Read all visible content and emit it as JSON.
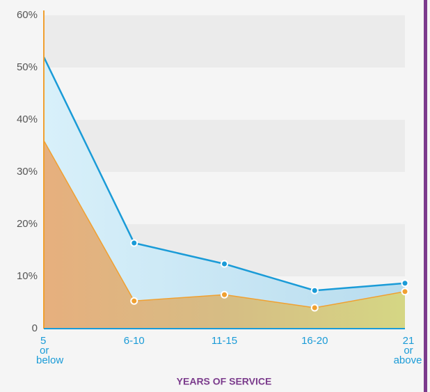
{
  "chart_data": {
    "type": "area",
    "x_label": "YEARS OF SERVICE",
    "categories": [
      "5 or below",
      "6-10",
      "11-15",
      "16-20",
      "21 or above"
    ],
    "series": [
      {
        "color": "#1a9bd7",
        "values": [
          52,
          16.4,
          12.4,
          7.3,
          8.7
        ]
      },
      {
        "color": "#f0a030",
        "values": [
          36,
          5.3,
          6.5,
          4,
          7.1
        ]
      }
    ],
    "ylim": [
      0,
      60
    ],
    "yticks": [
      0,
      {
        "value": 10,
        "label": "10%"
      },
      {
        "value": 20,
        "label": "20%"
      },
      {
        "value": 30,
        "label": "30%"
      },
      {
        "value": 40,
        "label": "40%"
      },
      {
        "value": 50,
        "label": "50%"
      },
      {
        "value": 60,
        "label": "60%"
      }
    ],
    "bands": true
  }
}
